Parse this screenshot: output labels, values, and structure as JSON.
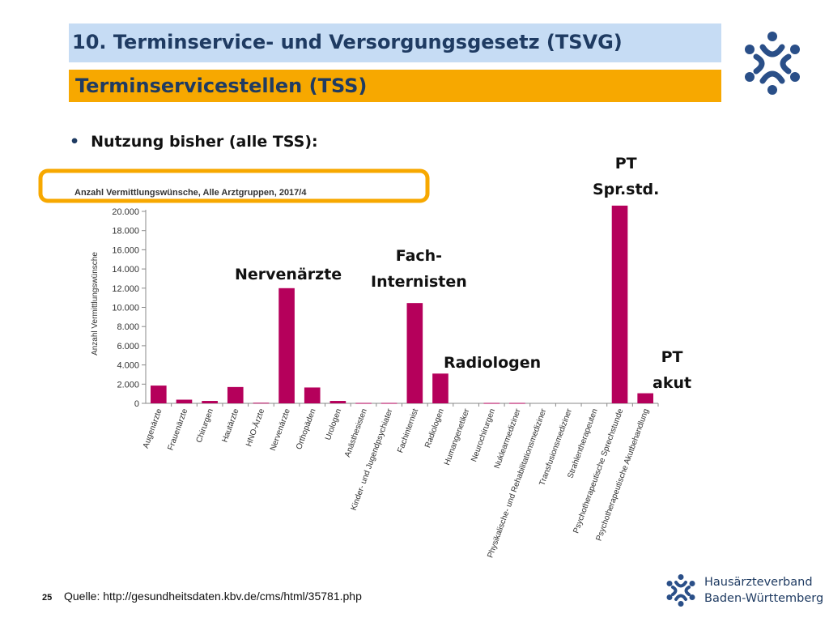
{
  "slide": {
    "title": "10. Terminservice- und Versorgungsgesetz (TSVG)",
    "subtitle": "Terminservicestellen (TSS)",
    "bullet": "Nutzung bisher (alle TSS):",
    "page_number": "25",
    "source": "Quelle: http://gesundheitsdaten.kbv.de/cms/html/35781.php",
    "org_name_line1": "Hausärzteverband",
    "org_name_line2": "Baden-Württemberg"
  },
  "annotations": {
    "nervenaerzte": "Nervenärzte",
    "fachinternisten_line1": "Fach-",
    "fachinternisten_line2": "Internisten",
    "radiologen": "Radiologen",
    "pt_sprstd_line1": "PT",
    "pt_sprstd_line2": "Spr.std.",
    "pt_akut_line1": "PT",
    "pt_akut_line2": "akut"
  },
  "colors": {
    "bar": "#b5005b",
    "title_bg": "#c6dcf4",
    "subtitle_bg": "#f7a800",
    "highlight_frame": "#f7a800",
    "brand_blue": "#1f3b62"
  },
  "chart_data": {
    "type": "bar",
    "title": "Anzahl Vermittlungswünsche, Alle Arztgruppen, 2017/4",
    "ylabel": "Anzahl Vermittlungswünsche",
    "xlabel": "",
    "ylim": [
      0,
      20000
    ],
    "yticks": [
      0,
      2000,
      4000,
      6000,
      8000,
      10000,
      12000,
      14000,
      16000,
      18000,
      20000
    ],
    "ytick_labels": [
      "0",
      "2.000",
      "4.000",
      "6.000",
      "8.000",
      "10.000",
      "12.000",
      "14.000",
      "16.000",
      "18.000",
      "20.000"
    ],
    "grid": false,
    "categories": [
      "Augenärzte",
      "Frauenärzte",
      "Chirurgen",
      "Hautärzte",
      "HNO-Ärzte",
      "Nervenärzte",
      "Orthopäden",
      "Urologen",
      "Anästhesisten",
      "Kinder- und Jugendpsychiater",
      "Fachinternist",
      "Radiologen",
      "Humangenetiker",
      "Neurochirurgen",
      "Nuklearmediziner",
      "Physikalische- und Rehabilitationsmediziner",
      "Transfusionsmediziner",
      "Strahlentherapeuten",
      "Psychotherapeutische Sprechstunde",
      "Psychotherapeutische Akutbehandlung"
    ],
    "values": [
      1850,
      380,
      250,
      1700,
      60,
      12000,
      1650,
      250,
      40,
      40,
      10450,
      3100,
      0,
      40,
      40,
      0,
      0,
      0,
      20600,
      1050
    ]
  }
}
